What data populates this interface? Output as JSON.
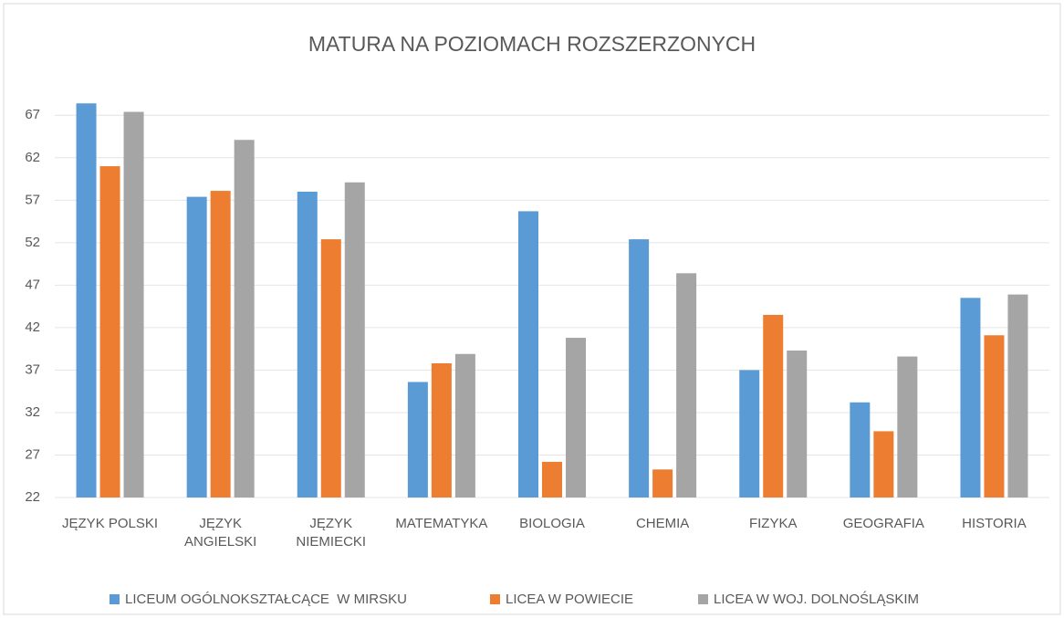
{
  "chart_data": {
    "type": "bar",
    "title": "MATURA NA POZIOMACH ROZSZERZONYCH",
    "categories": [
      "JĘZYK POLSKI",
      "JĘZYK ANGIELSKI",
      "JĘZYK NIEMIECKI",
      "MATEMATYKA",
      "BIOLOGIA",
      "CHEMIA",
      "FIZYKA",
      "GEOGRAFIA",
      "HISTORIA"
    ],
    "series": [
      {
        "name": "LICEUM OGÓLNOKSZTAŁCĄCE  W MIRSKU",
        "color": "#5b9bd5",
        "values": [
          68.4,
          57.4,
          58.0,
          35.6,
          55.7,
          52.4,
          37.0,
          33.2,
          45.5
        ]
      },
      {
        "name": "LICEA W POWIECIE",
        "color": "#ed7d31",
        "values": [
          61.0,
          58.1,
          52.4,
          37.8,
          26.2,
          25.3,
          43.5,
          29.8,
          41.1
        ]
      },
      {
        "name": "LICEA W WOJ. DOLNOŚLĄSKIM",
        "color": "#a5a5a5",
        "values": [
          67.4,
          64.1,
          59.1,
          38.9,
          40.8,
          48.4,
          39.3,
          38.6,
          45.9
        ]
      }
    ],
    "ylim": [
      22,
      69.5
    ],
    "yticks": [
      22,
      27,
      32,
      37,
      42,
      47,
      52,
      57,
      62,
      67
    ],
    "grid": true,
    "legend": "bottom"
  }
}
